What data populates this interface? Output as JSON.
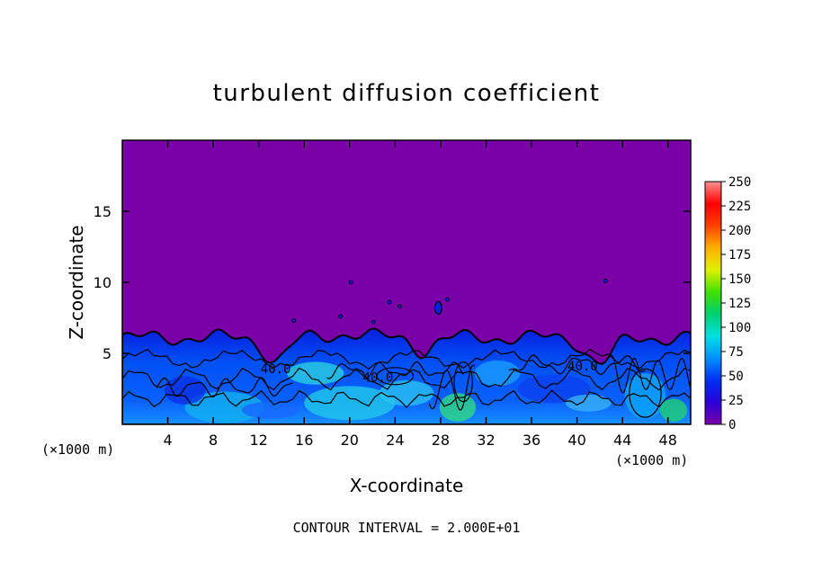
{
  "chart_data": {
    "type": "heatmap",
    "title": "turbulent diffusion coefficient",
    "xlabel": "X-coordinate",
    "ylabel": "Z-coordinate",
    "x_unit_left": "(×1000 m)",
    "x_unit_right": "(×1000 m)",
    "footer": "CONTOUR INTERVAL = 2.000E+01",
    "xlim": [
      0,
      50
    ],
    "ylim": [
      0,
      20
    ],
    "xticks": [
      4,
      8,
      12,
      16,
      20,
      24,
      28,
      32,
      36,
      40,
      44,
      48
    ],
    "yticks": [
      5,
      10,
      15
    ],
    "colorbar": {
      "min": 0,
      "max": 250,
      "ticks": [
        0,
        25,
        50,
        75,
        100,
        125,
        150,
        175,
        200,
        225,
        250
      ],
      "colors": [
        "#7a00a8",
        "#2a00d8",
        "#0030f0",
        "#0090ff",
        "#00e0e0",
        "#00d070",
        "#40e000",
        "#e0f000",
        "#ffb000",
        "#ff4000",
        "#ff0000",
        "#ff9090"
      ]
    },
    "background_value": 0,
    "turbulent_layer_top_z": 6.3,
    "contour_labels": [
      {
        "text": "40.0",
        "x": 40.5,
        "z": 3.8
      },
      {
        "text": "40.0",
        "x": 22.5,
        "z": 3.0
      },
      {
        "text": "40.0",
        "x": 13.5,
        "z": 3.6
      }
    ]
  }
}
